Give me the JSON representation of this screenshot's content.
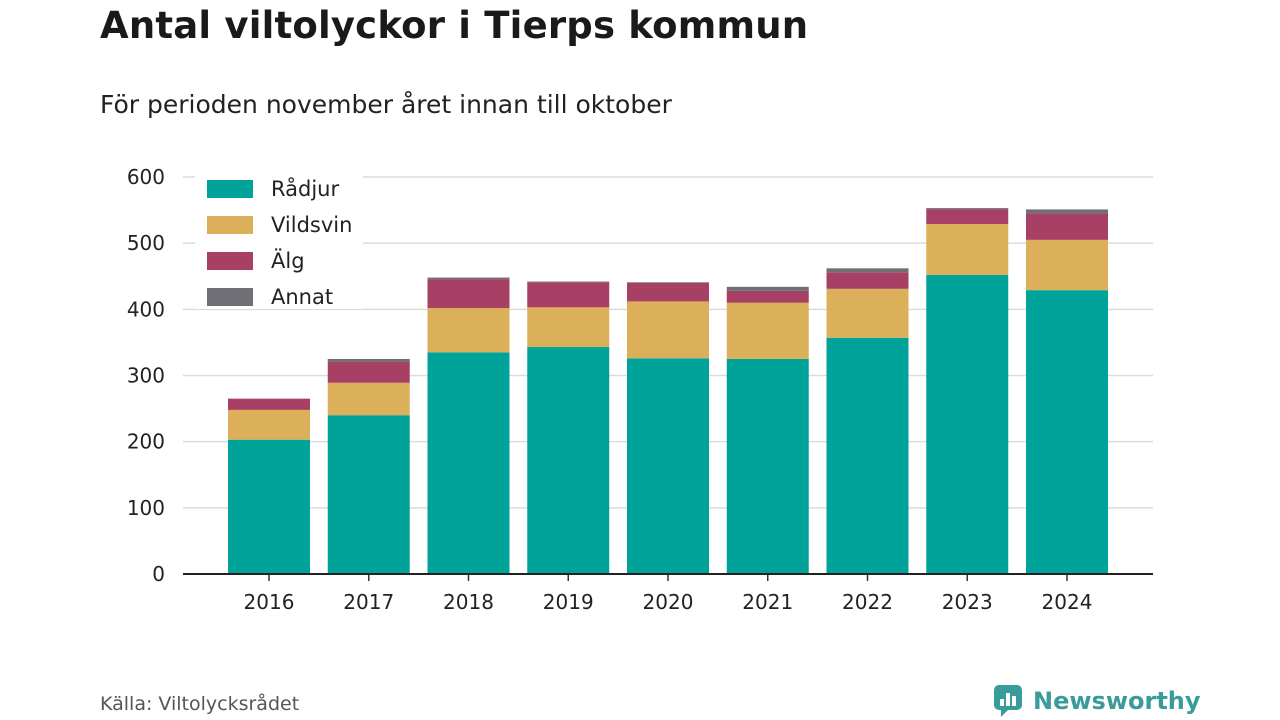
{
  "title": "Antal viltolyckor i Tierps kommun",
  "subtitle": "För perioden november året innan till oktober",
  "source": "Källa: Viltolycksrådet",
  "brand": {
    "name": "Newsworthy",
    "logo_icon": "newsworthy-logo-icon",
    "color": "#3a9c9a"
  },
  "chart_data": {
    "type": "bar",
    "stacked": true,
    "categories": [
      "2016",
      "2017",
      "2018",
      "2019",
      "2020",
      "2021",
      "2022",
      "2023",
      "2024"
    ],
    "series": [
      {
        "name": "Rådjur",
        "color": "#00a39a",
        "values": [
          203,
          240,
          335,
          343,
          326,
          325,
          357,
          452,
          429
        ]
      },
      {
        "name": "Vildsvin",
        "color": "#dcaf5a",
        "values": [
          45,
          49,
          67,
          60,
          86,
          85,
          74,
          77,
          76
        ]
      },
      {
        "name": "Älg",
        "color": "#a83f65",
        "values": [
          17,
          32,
          43,
          38,
          28,
          18,
          25,
          22,
          40
        ]
      },
      {
        "name": "Annat",
        "color": "#6f6f75",
        "values": [
          0,
          4,
          3,
          1,
          1,
          6,
          6,
          2,
          6
        ]
      }
    ],
    "yticks": [
      0,
      100,
      200,
      300,
      400,
      500,
      600
    ],
    "ylim": [
      0,
      600
    ],
    "grid": true,
    "legend_position": "top-left"
  }
}
